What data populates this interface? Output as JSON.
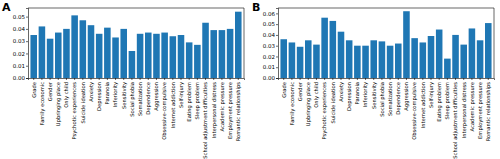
{
  "chart_data": [
    {
      "type": "bar",
      "title": "A",
      "categories": [
        "Grade",
        "Family economic",
        "Gender",
        "Upbringing place",
        "Only child",
        "Psychotic experiences",
        "Suicide ideation",
        "Anxiety",
        "Depression",
        "Paranoia",
        "Inferiority",
        "Sensitivity",
        "Social phobia",
        "Somatization",
        "Dependence",
        "Aggression",
        "Obsessive-compulsive",
        "Internet addiction",
        "Self-injury",
        "Eating problem",
        "Sleep problem",
        "School adjustment difficulties",
        "Interpersonal distress",
        "Academic pressure",
        "Employment pressure",
        "Romantic relationships"
      ],
      "values": [
        0.035,
        0.042,
        0.032,
        0.037,
        0.04,
        0.051,
        0.047,
        0.043,
        0.036,
        0.041,
        0.033,
        0.04,
        0.022,
        0.036,
        0.037,
        0.036,
        0.037,
        0.034,
        0.035,
        0.029,
        0.027,
        0.045,
        0.039,
        0.039,
        0.04,
        0.054
      ],
      "color": "#1f77b4",
      "ylim": [
        0,
        0.057
      ],
      "yticks": [
        {
          "value": 0,
          "label": "0.00"
        },
        {
          "value": 0.01,
          "label": "0.01"
        },
        {
          "value": 0.02,
          "label": "0.02"
        },
        {
          "value": 0.03,
          "label": "0.03"
        },
        {
          "value": 0.04,
          "label": "0.04"
        },
        {
          "value": 0.05,
          "label": "0.05"
        }
      ]
    },
    {
      "type": "bar",
      "title": "B",
      "categories": [
        "Grade",
        "Family economic",
        "Gender",
        "Upbringing place",
        "Only child",
        "Psychotic experiences",
        "Suicide ideation",
        "Anxiety",
        "Depression",
        "Paranoia",
        "Inferiority",
        "Sensitivity",
        "Social phobia",
        "Somatization",
        "Dependence",
        "Aggression",
        "Obsessive-compulsive",
        "Internet addiction",
        "Self-injury",
        "Eating problem",
        "Sleep problem",
        "School adjustment difficulties",
        "Interpersonal distress",
        "Academic pressure",
        "Employment pressure",
        "Romantic relationships"
      ],
      "values": [
        0.036,
        0.033,
        0.029,
        0.035,
        0.031,
        0.056,
        0.053,
        0.043,
        0.035,
        0.03,
        0.03,
        0.035,
        0.034,
        0.03,
        0.032,
        0.062,
        0.037,
        0.033,
        0.039,
        0.045,
        0.018,
        0.04,
        0.031,
        0.046,
        0.035,
        0.051
      ],
      "color": "#1f77b4",
      "ylim": [
        0,
        0.065
      ],
      "yticks": [
        {
          "value": 0,
          "label": "0.00"
        },
        {
          "value": 0.01,
          "label": "0.01"
        },
        {
          "value": 0.02,
          "label": "0.02"
        },
        {
          "value": 0.03,
          "label": "0.03"
        },
        {
          "value": 0.04,
          "label": "0.04"
        },
        {
          "value": 0.05,
          "label": "0.05"
        },
        {
          "value": 0.06,
          "label": "0.06"
        }
      ]
    }
  ]
}
